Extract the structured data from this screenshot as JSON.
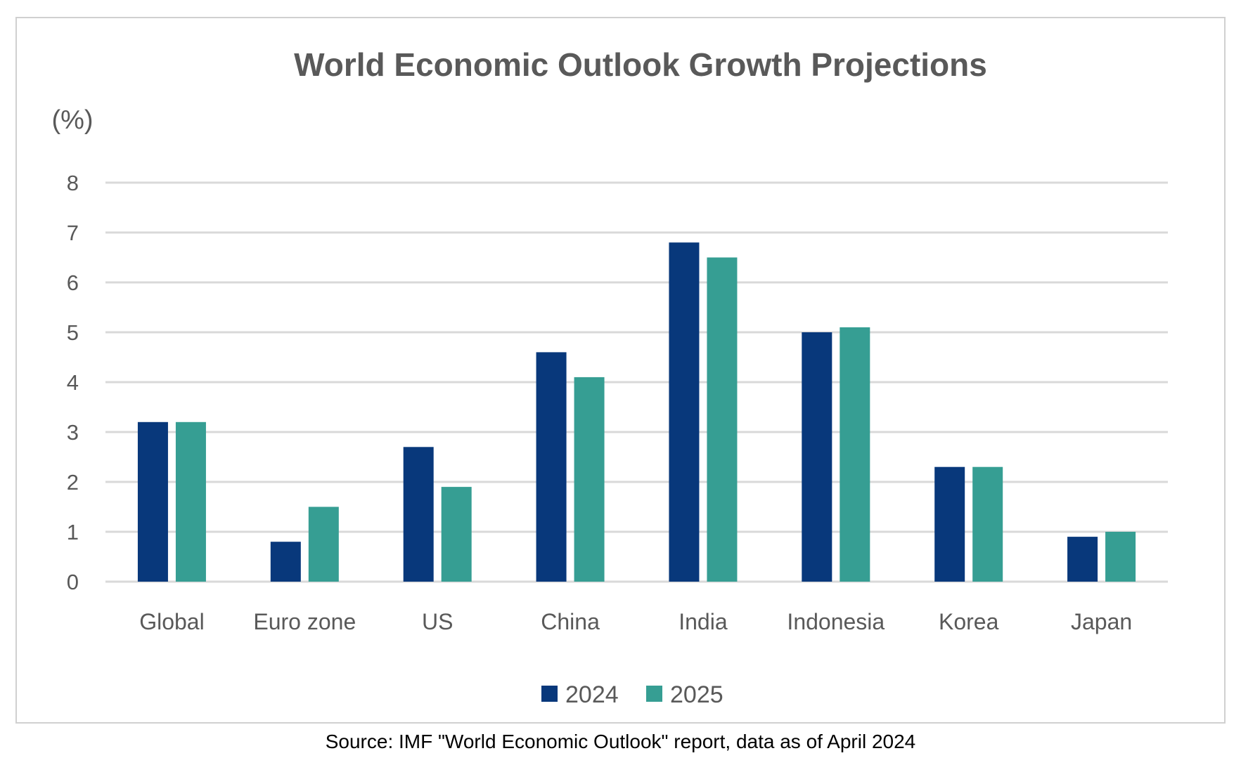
{
  "chart_data": {
    "type": "bar",
    "title": "World Economic Outlook Growth Projections",
    "ylabel": "(%)",
    "xlabel": "",
    "ylim": [
      0,
      8
    ],
    "yticks": [
      0,
      1,
      2,
      3,
      4,
      5,
      6,
      7,
      8
    ],
    "grid": true,
    "legend_position": "bottom",
    "categories": [
      "Global",
      "Euro zone",
      "US",
      "China",
      "India",
      "Indonesia",
      "Korea",
      "Japan"
    ],
    "series": [
      {
        "name": "2024",
        "color": "#08387b",
        "values": [
          3.2,
          0.8,
          2.7,
          4.6,
          6.8,
          5.0,
          2.3,
          0.9
        ]
      },
      {
        "name": "2025",
        "color": "#369e93",
        "values": [
          3.2,
          1.5,
          1.9,
          4.1,
          6.5,
          5.1,
          2.3,
          1.0
        ]
      }
    ]
  },
  "source_note": "Source: IMF \"World Economic Outlook\" report, data as of April 2024"
}
